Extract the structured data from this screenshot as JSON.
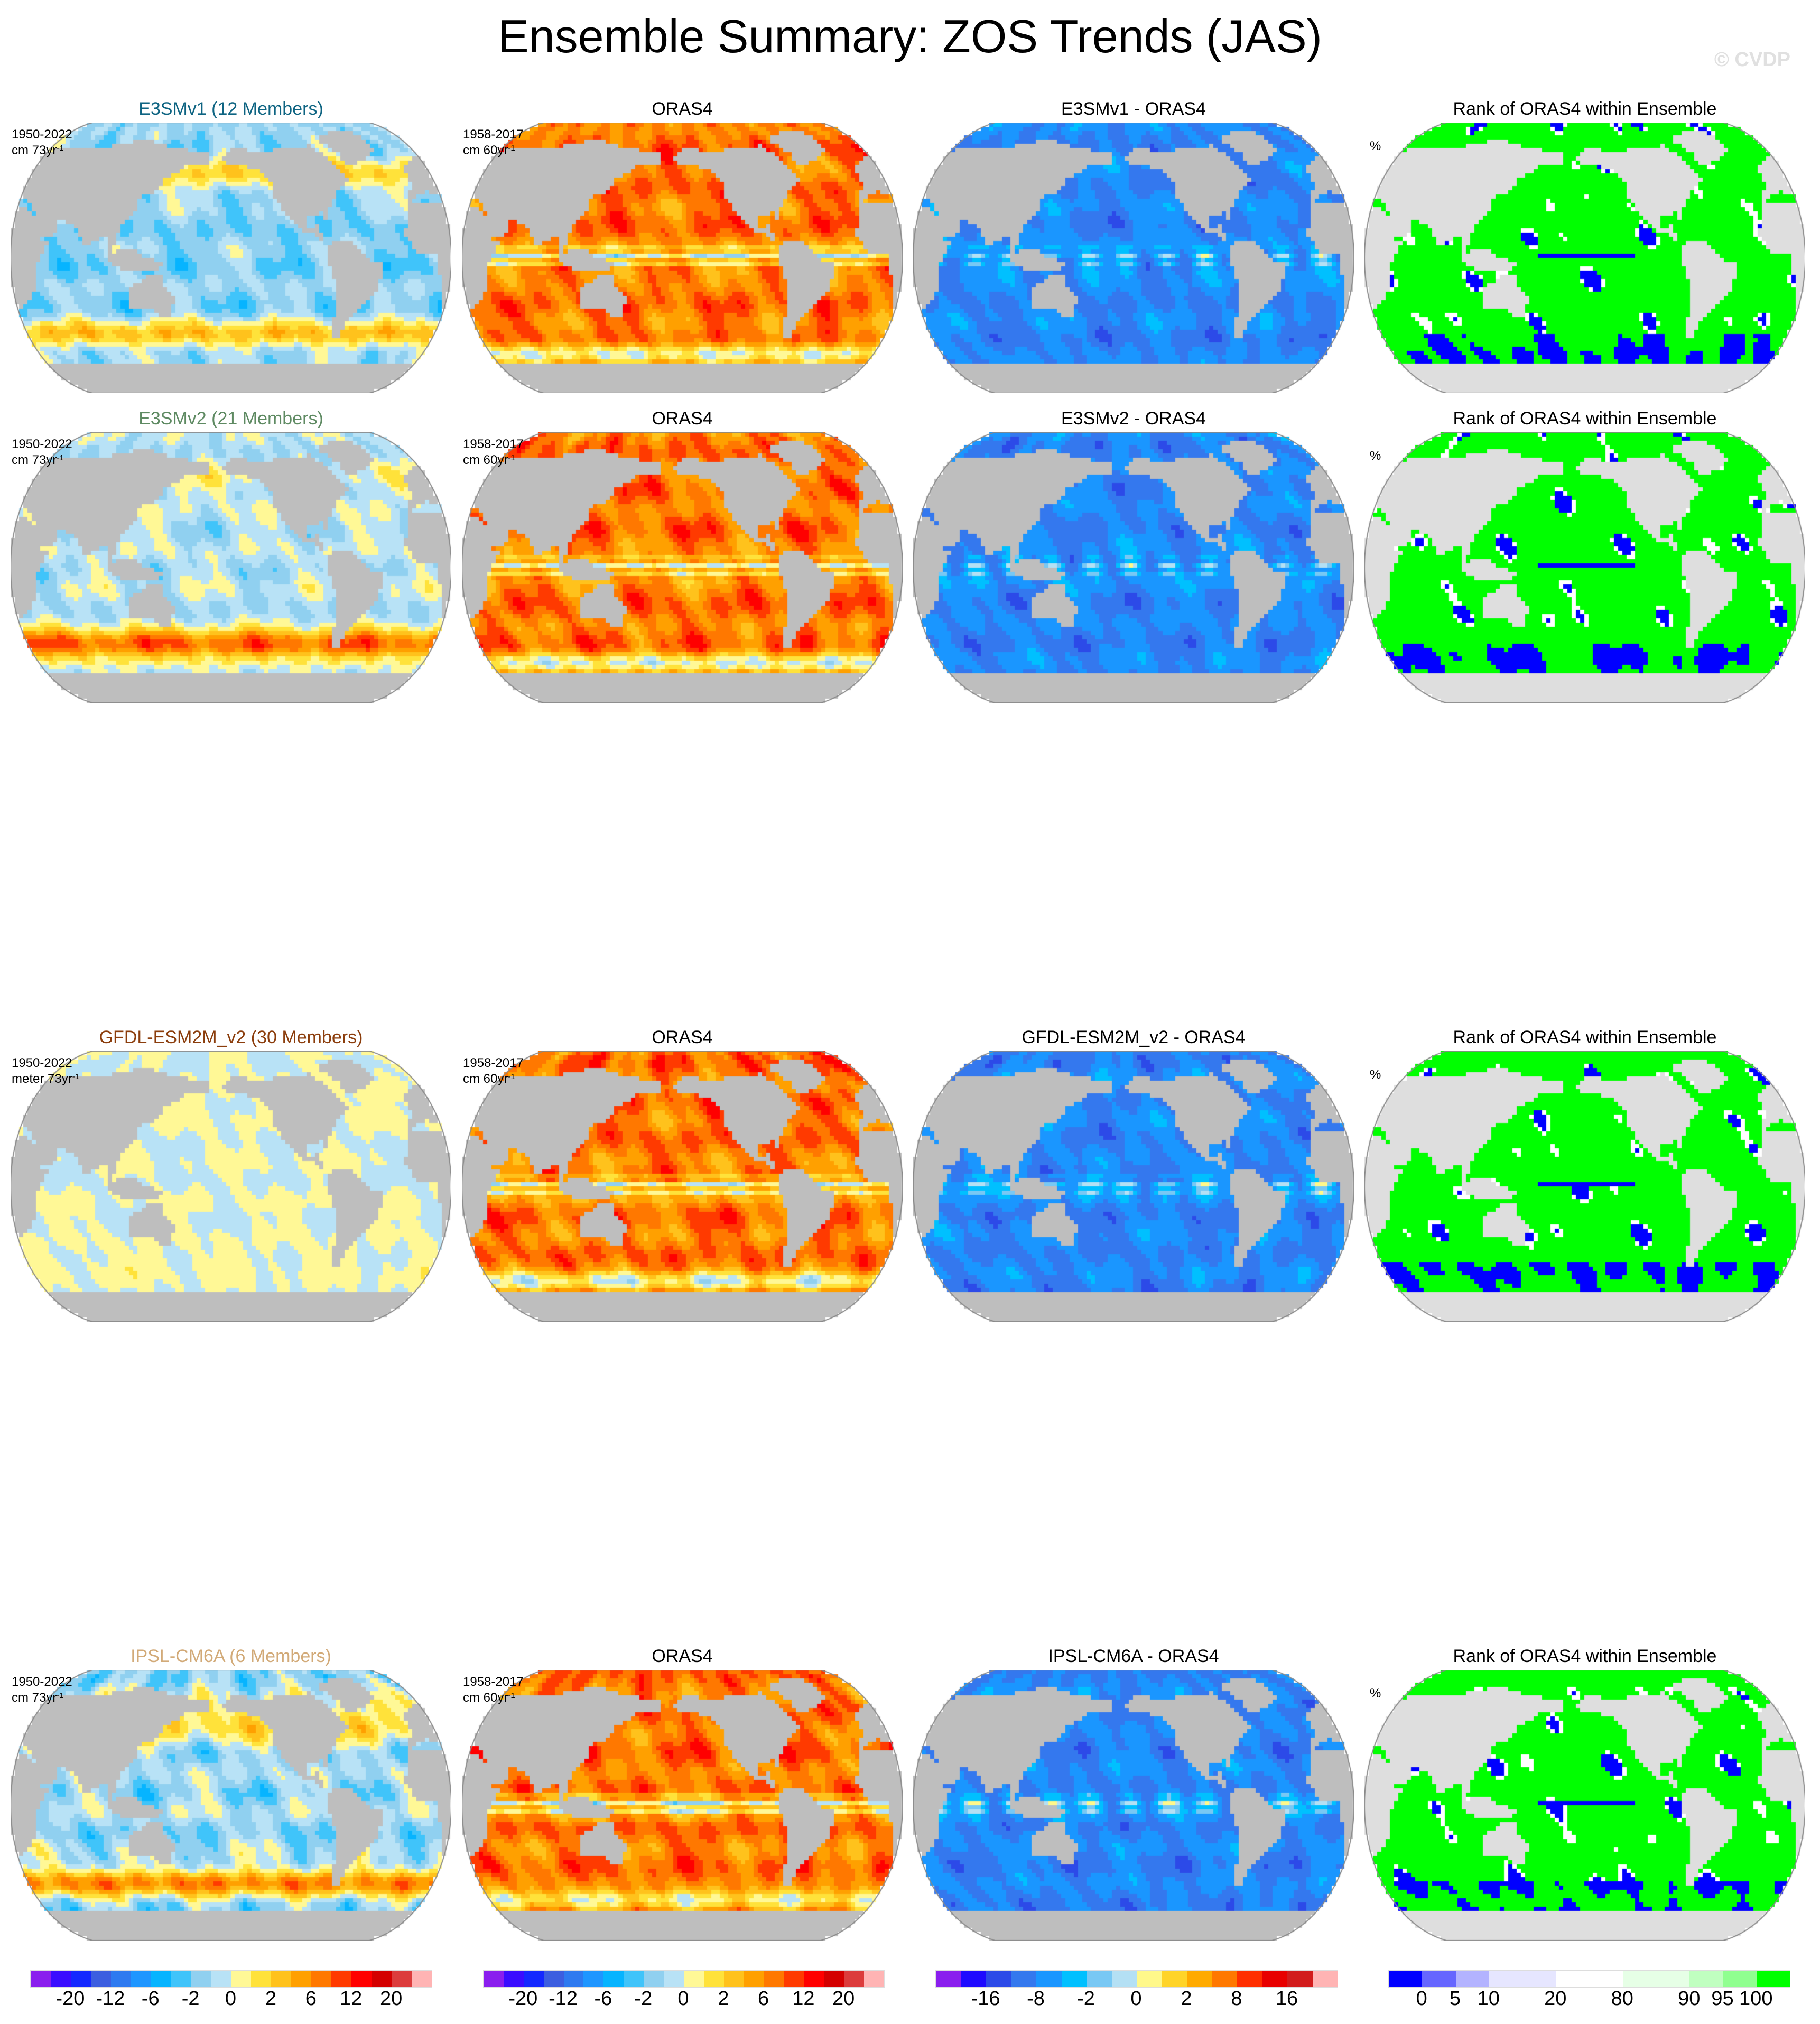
{
  "title": "Ensemble Summary: ZOS Trends (JAS)",
  "watermark": "© CVDP",
  "rows": [
    {
      "model": {
        "title": "E3SMv1 (12 Members)",
        "title_color": "#0e6482",
        "period": "1950-2022",
        "units": "cm 73yr",
        "units_exp": "-1"
      },
      "obs": {
        "title": "ORAS4",
        "period": "1958-2017",
        "units": "cm 60yr",
        "units_exp": "-1"
      },
      "diff": {
        "title": "E3SMv1 - ORAS4"
      },
      "rank": {
        "title": "Rank of ORAS4 within Ensemble",
        "units": "%"
      }
    },
    {
      "model": {
        "title": "E3SMv2 (21 Members)",
        "title_color": "#5e8a62",
        "period": "1950-2022",
        "units": "cm 73yr",
        "units_exp": "-1"
      },
      "obs": {
        "title": "ORAS4",
        "period": "1958-2017",
        "units": "cm 60yr",
        "units_exp": "-1"
      },
      "diff": {
        "title": "E3SMv2 - ORAS4"
      },
      "rank": {
        "title": "Rank of ORAS4 within Ensemble",
        "units": "%"
      }
    },
    {
      "model": {
        "title": "GFDL-ESM2M_v2 (30 Members)",
        "title_color": "#8b3d0c",
        "period": "1950-2022",
        "units": "meter 73yr",
        "units_exp": "-1"
      },
      "obs": {
        "title": "ORAS4",
        "period": "1958-2017",
        "units": "cm 60yr",
        "units_exp": "-1"
      },
      "diff": {
        "title": "GFDL-ESM2M_v2 - ORAS4"
      },
      "rank": {
        "title": "Rank of ORAS4 within Ensemble",
        "units": "%"
      }
    },
    {
      "model": {
        "title": "IPSL-CM6A (6 Members)",
        "title_color": "#d2aa78",
        "period": "1950-2022",
        "units": "cm 73yr",
        "units_exp": "-1"
      },
      "obs": {
        "title": "ORAS4",
        "period": "1958-2017",
        "units": "cm 60yr",
        "units_exp": "-1"
      },
      "diff": {
        "title": "IPSL-CM6A - ORAS4"
      },
      "rank": {
        "title": "Rank of ORAS4 within Ensemble",
        "units": "%"
      }
    }
  ],
  "chart_data": {
    "type": "heatmap",
    "projection": "robinson",
    "land_color": "#bebebe",
    "colorbars": [
      {
        "panel": "model",
        "colors": [
          "#8a1eee",
          "#3a0cff",
          "#1428ff",
          "#3c5ee0",
          "#2e7af0",
          "#1e96ff",
          "#06b4ff",
          "#40c4fa",
          "#90d0f0",
          "#b8e2f6",
          "#fff896",
          "#ffe23a",
          "#ffc21c",
          "#ffa000",
          "#ff7800",
          "#ff3a00",
          "#ff0000",
          "#d40000",
          "#dc3c3c",
          "#ffb4b4"
        ],
        "labels": [
          "-20",
          "-12",
          "-6",
          "-2",
          "0",
          "2",
          "6",
          "12",
          "20"
        ],
        "label_boundaries": [
          2,
          4,
          6,
          8,
          10,
          12,
          14,
          16,
          18
        ]
      },
      {
        "panel": "obs",
        "colors": [
          "#8a1eee",
          "#3a0cff",
          "#1428ff",
          "#3c5ee0",
          "#2e7af0",
          "#1e96ff",
          "#06b4ff",
          "#40c4fa",
          "#90d0f0",
          "#b8e2f6",
          "#fff896",
          "#ffe23a",
          "#ffc21c",
          "#ffa000",
          "#ff7800",
          "#ff3a00",
          "#ff0000",
          "#d40000",
          "#dc3c3c",
          "#ffb4b4"
        ],
        "labels": [
          "-20",
          "-12",
          "-6",
          "-2",
          "0",
          "2",
          "6",
          "12",
          "20"
        ],
        "label_boundaries": [
          2,
          4,
          6,
          8,
          10,
          12,
          14,
          16,
          18
        ]
      },
      {
        "panel": "diff",
        "colors": [
          "#8a1eee",
          "#1e0aff",
          "#2c4ae8",
          "#3478ee",
          "#1a96ff",
          "#00c0ff",
          "#78c8f4",
          "#b4e0f4",
          "#fff88a",
          "#ffd428",
          "#ffaa00",
          "#ff7800",
          "#ff2e00",
          "#e80000",
          "#d21c1c",
          "#ffb4b4"
        ],
        "labels": [
          "-16",
          "-8",
          "-2",
          "0",
          "2",
          "8",
          "16"
        ],
        "label_boundaries": [
          2,
          4,
          6,
          8,
          10,
          12,
          14
        ]
      },
      {
        "panel": "rank",
        "colors": [
          "#0000ff",
          "#6666ff",
          "#b3b3ff",
          "#e6e6ff",
          "#ffffff",
          "#e6ffe6",
          "#c0ffc0",
          "#90ff90",
          "#00ff00"
        ],
        "widths": [
          1,
          1,
          1,
          2,
          2,
          2,
          1,
          1,
          1
        ],
        "labels": [
          "0",
          "5",
          "10",
          "20",
          "80",
          "90",
          "95",
          "100"
        ],
        "label_boundaries": [
          1,
          2,
          3,
          5,
          7,
          9,
          10,
          11
        ]
      }
    ]
  }
}
